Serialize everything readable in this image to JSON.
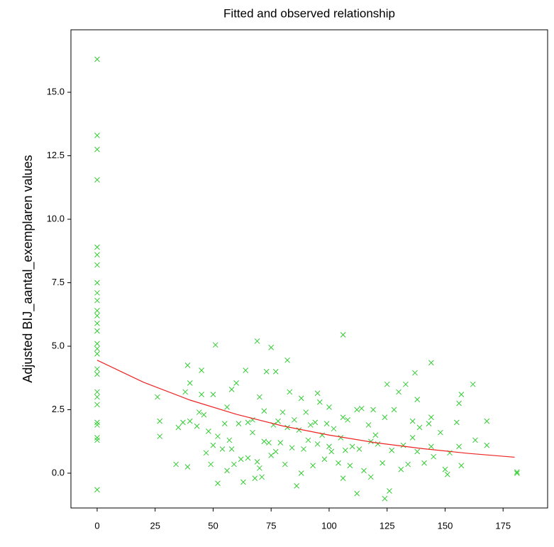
{
  "chart_data": {
    "type": "scatter",
    "title": "Fitted and observed relationship",
    "y_label": "Adjusted BIJ_aantal_exemplaren values",
    "xlim": [
      -11.3,
      194.2
    ],
    "ylim": [
      -1.37,
      17.46
    ],
    "xticks": [
      0,
      25,
      50,
      75,
      100,
      125,
      150,
      175
    ],
    "yticks": [
      {
        "value": 0,
        "label": "0.0"
      },
      2.5,
      {
        "value": 5,
        "label": "5.0"
      },
      7.5,
      {
        "value": 10,
        "label": "10.0"
      },
      12.5,
      {
        "value": 15,
        "label": "15.0"
      }
    ],
    "points": {
      "color": "#33cc33",
      "x": [
        0,
        0,
        0,
        0,
        0,
        0,
        0,
        0,
        0,
        0,
        0,
        0,
        0,
        0,
        0,
        0,
        0,
        0,
        0,
        0,
        0,
        0,
        0,
        0,
        0,
        0,
        0,
        26,
        27,
        27,
        34,
        35,
        37,
        38,
        39,
        39,
        40,
        40,
        43,
        44,
        45,
        45,
        46,
        47,
        48,
        49,
        50,
        50,
        51,
        52,
        52,
        54,
        55,
        56,
        56,
        57,
        58,
        58,
        59,
        60,
        61,
        62,
        63,
        64,
        65,
        65,
        67,
        67,
        68,
        69,
        69,
        70,
        70,
        71,
        72,
        72,
        73,
        74,
        75,
        75,
        76,
        77,
        77,
        78,
        79,
        80,
        81,
        82,
        82,
        83,
        84,
        85,
        86,
        87,
        88,
        88,
        89,
        90,
        91,
        92,
        93,
        94,
        95,
        95,
        96,
        97,
        98,
        99,
        100,
        100,
        101,
        102,
        104,
        105,
        106,
        106,
        106,
        107,
        108,
        109,
        110,
        112,
        112,
        113,
        114,
        115,
        117,
        118,
        118,
        119,
        120,
        121,
        123,
        124,
        124,
        125,
        126,
        127,
        128,
        130,
        131,
        132,
        133,
        134,
        136,
        136,
        137,
        138,
        138,
        139,
        141,
        143,
        144,
        144,
        144,
        145,
        148,
        150,
        151,
        152,
        155,
        156,
        156,
        157,
        157,
        162,
        163,
        168,
        168,
        181,
        181
      ],
      "values": [
        16.3,
        13.3,
        12.75,
        11.55,
        8.9,
        8.6,
        8.2,
        7.5,
        7.1,
        6.8,
        6.4,
        6.2,
        5.9,
        5.6,
        5.1,
        4.9,
        4.7,
        4.1,
        3.9,
        3.2,
        3.0,
        2.7,
        2.0,
        1.9,
        1.4,
        1.3,
        -0.65,
        3.0,
        1.45,
        2.05,
        0.35,
        1.8,
        2.0,
        3.2,
        0.25,
        4.25,
        3.55,
        2.05,
        1.85,
        2.4,
        4.05,
        3.1,
        2.3,
        0.8,
        1.65,
        0.35,
        1.1,
        3.1,
        5.05,
        -0.4,
        1.45,
        0.95,
        1.95,
        2.6,
        0.1,
        1.3,
        0.95,
        3.3,
        0.35,
        3.55,
        1.95,
        0.55,
        -0.35,
        4.05,
        2.0,
        0.6,
        1.6,
        2.1,
        -0.2,
        5.2,
        0.45,
        3.0,
        0.2,
        -0.15,
        2.45,
        1.25,
        4.0,
        1.2,
        0.7,
        4.95,
        1.9,
        0.85,
        4.0,
        2.05,
        1.2,
        2.4,
        0.35,
        4.45,
        1.8,
        3.2,
        1.0,
        2.1,
        -0.5,
        1.7,
        2.95,
        0.0,
        0.95,
        2.4,
        1.3,
        1.9,
        0.3,
        2.0,
        3.15,
        1.15,
        2.8,
        1.5,
        0.55,
        1.95,
        1.05,
        2.6,
        0.85,
        1.75,
        0.4,
        1.4,
        5.45,
        2.2,
        -0.2,
        0.9,
        2.1,
        0.3,
        1.05,
        -0.8,
        2.5,
        0.95,
        2.55,
        0.1,
        1.9,
        1.25,
        -0.15,
        2.5,
        1.5,
        1.15,
        0.4,
        2.2,
        -1.0,
        3.5,
        -0.7,
        0.9,
        2.5,
        3.2,
        0.15,
        1.1,
        3.5,
        0.35,
        1.4,
        2.05,
        3.95,
        2.9,
        0.85,
        1.8,
        0.4,
        1.95,
        4.35,
        2.2,
        1.05,
        0.65,
        1.6,
        0.15,
        -0.05,
        0.8,
        2.0,
        2.75,
        1.05,
        3.1,
        0.3,
        3.5,
        1.3,
        2.05,
        1.1,
        0.05,
        0.0
      ]
    },
    "fit": {
      "color": "#ee2222",
      "x": [
        0,
        20,
        40,
        60,
        80,
        100,
        120,
        140,
        160,
        180
      ],
      "values": [
        4.45,
        3.58,
        2.88,
        2.32,
        1.86,
        1.5,
        1.2,
        0.97,
        0.78,
        0.63
      ]
    }
  }
}
